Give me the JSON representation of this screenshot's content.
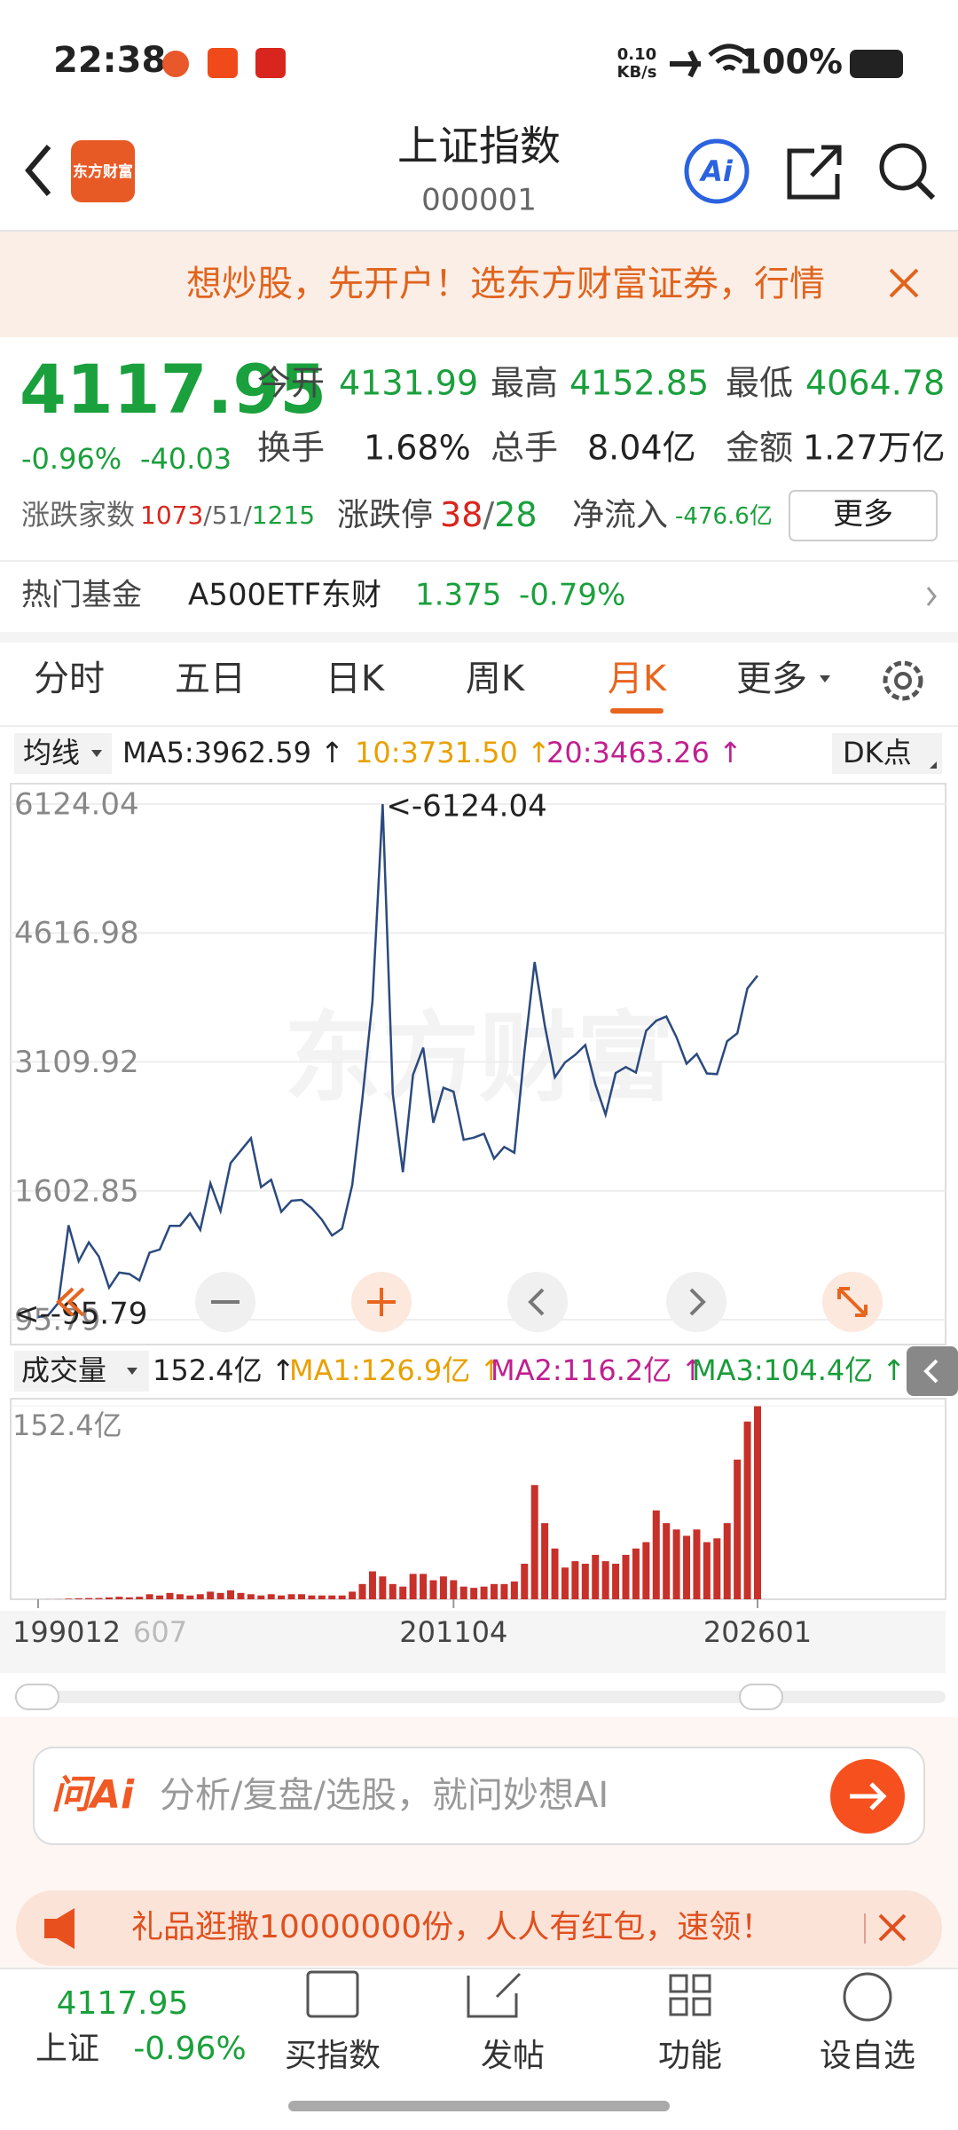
{
  "status_bar": {
    "time": "22:38",
    "net_speed": "0.10",
    "net_unit": "KB/s",
    "battery": "100%"
  },
  "header": {
    "title": "上证指数",
    "code": "000001",
    "logo": "东方财富",
    "ai_icon": "Ai"
  },
  "banner": {
    "text": "想炒股，先开户！选东方财富证券，行情"
  },
  "quote": {
    "price": "4117.95",
    "change_pct": "-0.96%",
    "change": "-40.03",
    "fields": [
      {
        "label": "今开",
        "value": "4131.99"
      },
      {
        "label": "最高",
        "value": "4152.85"
      },
      {
        "label": "最低",
        "value": "4064.78"
      },
      {
        "label": "换手",
        "value": "1.68%"
      },
      {
        "label": "总手",
        "value": "8.04亿"
      },
      {
        "label": "金额",
        "value": "1.27万亿"
      }
    ],
    "breadth_label": "涨跌家数",
    "up": "1073",
    "flat": "51",
    "down": "1215",
    "sep": "/",
    "limit_label": "涨跌停",
    "limit_up": "38",
    "limit_down": "28",
    "net_flow_label": "净流入",
    "net_flow": "-476.6亿",
    "more": "更多"
  },
  "fund": {
    "label": "热门基金",
    "name": "A500ETF东财",
    "price": "1.375",
    "change": "-0.79%"
  },
  "tabs": {
    "items": [
      "分时",
      "五日",
      "日K",
      "周K",
      "月K",
      "更多"
    ],
    "active": "月K"
  },
  "ma_legend": {
    "selector": "均线",
    "ma5": "MA5:3962.59 ↑",
    "ma10": "10:3731.50 ↑",
    "ma20": "20:3463.26 ↑",
    "dk": "DK点"
  },
  "price_chart": {
    "type": "line",
    "color": "#2b4a7e",
    "watermark": "东方财富",
    "categories": [
      "199012",
      null,
      null,
      null,
      null,
      null,
      null,
      null,
      null,
      null,
      null,
      null,
      null,
      null,
      null,
      null,
      null,
      null,
      null,
      null,
      null,
      null,
      null,
      null,
      null,
      null,
      null,
      null,
      null,
      null,
      null,
      null,
      null,
      null,
      null,
      null,
      null,
      null,
      null,
      null,
      null,
      "201104",
      null,
      null,
      null,
      null,
      null,
      null,
      null,
      null,
      null,
      null,
      null,
      null,
      null,
      null,
      null,
      null,
      null,
      null,
      null,
      null,
      null,
      null,
      null,
      null,
      null,
      null,
      null,
      null,
      null,
      "202601"
    ],
    "faded_label": "607",
    "values": [
      128,
      150,
      292,
      1200,
      780,
      1000,
      833,
      470,
      647,
      630,
      555,
      880,
      917,
      1194,
      1194,
      1339,
      1147,
      1690,
      1367,
      1928,
      2073,
      2218,
      1646,
      1732,
      1357,
      1487,
      1497,
      1400,
      1266,
      1080,
      1161,
      1672,
      2675,
      3820,
      6124.04,
      2736,
      1820,
      2959,
      3277,
      2398,
      2808,
      2762,
      2199,
      2225,
      2269,
      1979,
      2116,
      2048,
      3234,
      4277,
      3539,
      2930,
      3104,
      3192,
      3307,
      2847,
      2494,
      2979,
      3050,
      2985,
      3473,
      3591,
      3640,
      3399,
      3089,
      3202,
      2975,
      2967,
      3352,
      3444,
      3969,
      4117.95
    ],
    "ylim": [
      95.79,
      6124.04
    ],
    "yticks": [
      95.79,
      1602.85,
      3109.92,
      4616.98,
      6124.04
    ],
    "grid": true,
    "max_label": "<-6124.04",
    "min_label": "<--95.79"
  },
  "volume_chart": {
    "type": "bar",
    "color": "#c8302a",
    "values": [
      0.01,
      0.05,
      0.1,
      0.5,
      0.8,
      1,
      1,
      1.5,
      2,
      1.5,
      2,
      4,
      3,
      5,
      4,
      3,
      4,
      6,
      5,
      7,
      5,
      4,
      3,
      4,
      3,
      4,
      4,
      3,
      3,
      3,
      3,
      6,
      12,
      22,
      18,
      12,
      10,
      20,
      20,
      15,
      18,
      15,
      10,
      9,
      10,
      12,
      12,
      14,
      28,
      90,
      60,
      40,
      25,
      30,
      28,
      35,
      30,
      28,
      35,
      40,
      45,
      70,
      60,
      55,
      50,
      55,
      45,
      48,
      60,
      110,
      140,
      152.4
    ],
    "ylim": [
      0,
      152.4
    ],
    "yticks": [
      {
        "value": 152.4,
        "label": "152.4亿"
      }
    ],
    "legend": {
      "selector": "成交量",
      "current": "152.4亿 ↑",
      "ma1": "MA1:126.9亿 ↑",
      "ma2": "MA2:116.2亿 ↑",
      "ma3": "MA3:104.4亿 ↑"
    }
  },
  "ai_box": {
    "brand": "问Ai",
    "placeholder": "分析/复盘/选股，就问妙想AI"
  },
  "promo": {
    "text": "礼品逛撒10000000份，人人有红包，速领！"
  },
  "bottom_nav": {
    "index_price": "4117.95",
    "index_name": "上证",
    "index_change": "-0.96%",
    "items": [
      "买指数",
      "发帖",
      "功能",
      "设自选"
    ]
  }
}
